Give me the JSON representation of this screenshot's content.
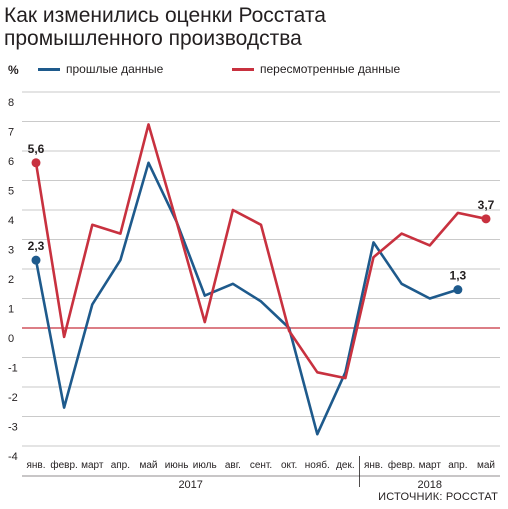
{
  "title_line1": "Как изменились оценки Росстата",
  "title_line2": "промышленного производства",
  "unit": "%",
  "source": "ИСТОЧНИК: РОССТАТ",
  "colors": {
    "blue": "#1e5a8c",
    "red": "#c8313f",
    "zero": "#c8313f",
    "grid": "#b8b8b8"
  },
  "chart_data": {
    "type": "line",
    "categories": [
      "янв.",
      "февр.",
      "март",
      "апр.",
      "май",
      "июнь",
      "июль",
      "авг.",
      "сент.",
      "окт.",
      "нояб.",
      "дек.",
      "янв.",
      "февр.",
      "март",
      "апр.",
      "май"
    ],
    "years": [
      {
        "label": "2017",
        "from": 0,
        "to": 11
      },
      {
        "label": "2018",
        "from": 12,
        "to": 16
      }
    ],
    "ylim": [
      -4,
      8
    ],
    "yticks": [
      8,
      7,
      6,
      5,
      4,
      3,
      2,
      1,
      0,
      -1,
      -2,
      -3,
      -4
    ],
    "grid": true,
    "legend_position": "top",
    "series": [
      {
        "name": "прошлые данные",
        "color": "#1e5a8c",
        "values": [
          2.3,
          -2.7,
          0.8,
          2.3,
          5.6,
          3.6,
          1.1,
          1.5,
          0.9,
          0.0,
          -3.6,
          -1.5,
          2.9,
          1.5,
          1.0,
          1.3,
          null
        ]
      },
      {
        "name": "пересмотренные данные",
        "color": "#c8313f",
        "values": [
          5.6,
          -0.3,
          3.5,
          3.2,
          6.9,
          3.6,
          0.2,
          4.0,
          3.5,
          -0.1,
          -1.5,
          -1.7,
          2.4,
          3.2,
          2.8,
          3.9,
          3.7
        ]
      }
    ],
    "annotations": [
      {
        "text": "5,6",
        "series": 1,
        "index": 0
      },
      {
        "text": "2,3",
        "series": 0,
        "index": 0
      },
      {
        "text": "3,7",
        "series": 1,
        "index": 16
      },
      {
        "text": "1,3",
        "series": 0,
        "index": 15
      }
    ]
  }
}
